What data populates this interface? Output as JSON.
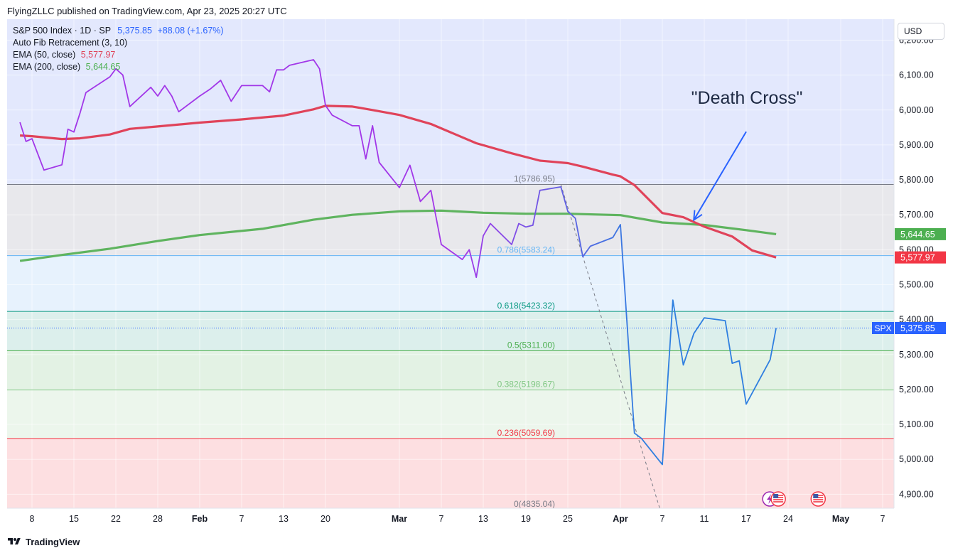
{
  "header": {
    "publisher": "FlyingZLLC published on TradingView.com, Apr 23, 2025 20:27 UTC"
  },
  "legend": {
    "symbol": "S&P 500 Index · 1D · SP",
    "last": "5,375.85",
    "change": "+88.08 (+1.67%)",
    "fib": "Auto Fib Retracement (3, 10)",
    "ema50_label": "EMA (50, close)",
    "ema50_value": "5,577.97",
    "ema200_label": "EMA (200, close)",
    "ema200_value": "5,644.65"
  },
  "currency": "USD",
  "footer": {
    "brand": "TradingView"
  },
  "colors": {
    "price_line_pre_march": "#a237e8",
    "price_line_post": "#2f7fe0",
    "ema50": "#e0435a",
    "ema200": "#5fb45f",
    "annotation": "#2962ff",
    "last_price_tag": "#2962ff"
  },
  "chart_data": {
    "type": "line",
    "title": "S&P 500 Index · 1D · SP",
    "ylim": [
      4860,
      6260
    ],
    "y_ticks": [
      4900,
      5000,
      5100,
      5200,
      5300,
      5400,
      5500,
      5600,
      5700,
      5800,
      5900,
      6000,
      6100,
      6200
    ],
    "y_tick_labels": [
      "4,900.00",
      "5,000.00",
      "5,100.00",
      "5,200.00",
      "5,300.00",
      "5,400.00",
      "5,500.00",
      "5,600.00",
      "5,700.00",
      "5,800.00",
      "5,900.00",
      "6,000.00",
      "6,100.00",
      "6,200.00"
    ],
    "x_ticks": [
      {
        "date": "2025-01-08",
        "label": "8",
        "bold": false
      },
      {
        "date": "2025-01-15",
        "label": "15",
        "bold": false
      },
      {
        "date": "2025-01-22",
        "label": "22",
        "bold": false
      },
      {
        "date": "2025-01-28",
        "label": "28",
        "bold": false
      },
      {
        "date": "2025-02-03",
        "label": "Feb",
        "bold": true
      },
      {
        "date": "2025-02-07",
        "label": "7",
        "bold": false
      },
      {
        "date": "2025-02-13",
        "label": "13",
        "bold": false
      },
      {
        "date": "2025-02-20",
        "label": "20",
        "bold": false
      },
      {
        "date": "2025-03-03",
        "label": "Mar",
        "bold": true
      },
      {
        "date": "2025-03-07",
        "label": "7",
        "bold": false
      },
      {
        "date": "2025-03-13",
        "label": "13",
        "bold": false
      },
      {
        "date": "2025-03-19",
        "label": "19",
        "bold": false
      },
      {
        "date": "2025-03-25",
        "label": "25",
        "bold": false
      },
      {
        "date": "2025-04-01",
        "label": "Apr",
        "bold": true
      },
      {
        "date": "2025-04-07",
        "label": "7",
        "bold": false
      },
      {
        "date": "2025-04-11",
        "label": "11",
        "bold": false
      },
      {
        "date": "2025-04-17",
        "label": "17",
        "bold": false
      },
      {
        "date": "2025-04-24",
        "label": "24",
        "bold": false
      },
      {
        "date": "2025-05-01",
        "label": "May",
        "bold": true
      },
      {
        "date": "2025-05-07",
        "label": "7",
        "bold": false
      }
    ],
    "series": [
      {
        "name": "S&P 500 Index",
        "points": [
          [
            "2025-01-06",
            5965
          ],
          [
            "2025-01-07",
            5910
          ],
          [
            "2025-01-08",
            5918
          ],
          [
            "2025-01-10",
            5828
          ],
          [
            "2025-01-13",
            5843
          ],
          [
            "2025-01-14",
            5945
          ],
          [
            "2025-01-15",
            5937
          ],
          [
            "2025-01-16",
            5990
          ],
          [
            "2025-01-17",
            6050
          ],
          [
            "2025-01-21",
            6095
          ],
          [
            "2025-01-22",
            6118
          ],
          [
            "2025-01-23",
            6100
          ],
          [
            "2025-01-24",
            6010
          ],
          [
            "2025-01-27",
            6065
          ],
          [
            "2025-01-28",
            6040
          ],
          [
            "2025-01-29",
            6070
          ],
          [
            "2025-01-30",
            6040
          ],
          [
            "2025-01-31",
            5995
          ],
          [
            "2025-02-03",
            6040
          ],
          [
            "2025-02-04",
            6060
          ],
          [
            "2025-02-05",
            6085
          ],
          [
            "2025-02-06",
            6025
          ],
          [
            "2025-02-07",
            6070
          ],
          [
            "2025-02-10",
            6070
          ],
          [
            "2025-02-11",
            6052
          ],
          [
            "2025-02-12",
            6115
          ],
          [
            "2025-02-13",
            6115
          ],
          [
            "2025-02-14",
            6128
          ],
          [
            "2025-02-18",
            6144
          ],
          [
            "2025-02-19",
            6118
          ],
          [
            "2025-02-20",
            6013
          ],
          [
            "2025-02-21",
            5985
          ],
          [
            "2025-02-24",
            5955
          ],
          [
            "2025-02-25",
            5955
          ],
          [
            "2025-02-26",
            5860
          ],
          [
            "2025-02-27",
            5955
          ],
          [
            "2025-02-28",
            5850
          ],
          [
            "2025-03-03",
            5778
          ],
          [
            "2025-03-04",
            5842
          ],
          [
            "2025-03-05",
            5738
          ],
          [
            "2025-03-06",
            5770
          ],
          [
            "2025-03-07",
            5615
          ],
          [
            "2025-03-10",
            5572
          ],
          [
            "2025-03-11",
            5600
          ],
          [
            "2025-03-12",
            5521
          ],
          [
            "2025-03-13",
            5640
          ],
          [
            "2025-03-14",
            5675
          ],
          [
            "2025-03-17",
            5615
          ],
          [
            "2025-03-18",
            5675
          ],
          [
            "2025-03-19",
            5665
          ],
          [
            "2025-03-20",
            5670
          ],
          [
            "2025-03-21",
            5770
          ],
          [
            "2025-03-24",
            5780
          ],
          [
            "2025-03-25",
            5710
          ],
          [
            "2025-03-26",
            5690
          ],
          [
            "2025-03-27",
            5580
          ],
          [
            "2025-03-28",
            5610
          ],
          [
            "2025-03-31",
            5635
          ],
          [
            "2025-04-01",
            5672
          ],
          [
            "2025-04-02",
            5375
          ],
          [
            "2025-04-03",
            5075
          ],
          [
            "2025-04-04",
            5060
          ],
          [
            "2025-04-07",
            4985
          ],
          [
            "2025-04-08",
            5456
          ],
          [
            "2025-04-09",
            5270
          ],
          [
            "2025-04-10",
            5360
          ],
          [
            "2025-04-11",
            5405
          ],
          [
            "2025-04-14",
            5397
          ],
          [
            "2025-04-15",
            5275
          ],
          [
            "2025-04-16",
            5282
          ],
          [
            "2025-04-17",
            5158
          ],
          [
            "2025-04-21",
            5285
          ],
          [
            "2025-04-22",
            5375.85
          ]
        ]
      },
      {
        "name": "EMA (50, close)",
        "points": [
          [
            "2025-01-06",
            5927
          ],
          [
            "2025-01-08",
            5925
          ],
          [
            "2025-01-13",
            5917
          ],
          [
            "2025-01-16",
            5919
          ],
          [
            "2025-01-21",
            5930
          ],
          [
            "2025-01-24",
            5946
          ],
          [
            "2025-01-28",
            5953
          ],
          [
            "2025-02-03",
            5964
          ],
          [
            "2025-02-07",
            5973
          ],
          [
            "2025-02-13",
            5984
          ],
          [
            "2025-02-18",
            6002
          ],
          [
            "2025-02-20",
            6012
          ],
          [
            "2025-02-24",
            6010
          ],
          [
            "2025-02-27",
            6000
          ],
          [
            "2025-03-03",
            5986
          ],
          [
            "2025-03-06",
            5960
          ],
          [
            "2025-03-12",
            5905
          ],
          [
            "2025-03-17",
            5876
          ],
          [
            "2025-03-21",
            5855
          ],
          [
            "2025-03-25",
            5848
          ],
          [
            "2025-03-27",
            5838
          ],
          [
            "2025-03-31",
            5815
          ],
          [
            "2025-04-01",
            5810
          ],
          [
            "2025-04-03",
            5785
          ],
          [
            "2025-04-07",
            5705
          ],
          [
            "2025-04-09",
            5693
          ],
          [
            "2025-04-11",
            5666
          ],
          [
            "2025-04-15",
            5638
          ],
          [
            "2025-04-18",
            5598
          ],
          [
            "2025-04-22",
            5577.97
          ]
        ]
      },
      {
        "name": "EMA (200, close)",
        "points": [
          [
            "2025-01-06",
            5568
          ],
          [
            "2025-01-13",
            5585
          ],
          [
            "2025-01-21",
            5603
          ],
          [
            "2025-01-28",
            5625
          ],
          [
            "2025-02-03",
            5642
          ],
          [
            "2025-02-10",
            5660
          ],
          [
            "2025-02-18",
            5686
          ],
          [
            "2025-02-24",
            5700
          ],
          [
            "2025-03-03",
            5710
          ],
          [
            "2025-03-07",
            5712
          ],
          [
            "2025-03-13",
            5706
          ],
          [
            "2025-03-19",
            5703
          ],
          [
            "2025-03-25",
            5703
          ],
          [
            "2025-04-01",
            5699
          ],
          [
            "2025-04-07",
            5678
          ],
          [
            "2025-04-11",
            5671
          ],
          [
            "2025-04-17",
            5656
          ],
          [
            "2025-04-22",
            5644.65
          ]
        ]
      }
    ],
    "fib_levels": [
      {
        "level": "1",
        "price": 5786.95,
        "label": "1(5786.95)",
        "color": "#787b86",
        "fill": "#e8e8ec",
        "label_color": "#787b86"
      },
      {
        "level": "0.786",
        "price": 5583.24,
        "label": "0.786(5583.24)",
        "color": "#64b5f6",
        "fill": "#e7f2fd",
        "label_color": "#64b5f6"
      },
      {
        "level": "0.618",
        "price": 5423.32,
        "label": "0.618(5423.32)",
        "color": "#089981",
        "fill": "#dcefec",
        "label_color": "#089981"
      },
      {
        "level": "0.5",
        "price": 5311.0,
        "label": "0.5(5311.00)",
        "color": "#4caf50",
        "fill": "#e3f2e4",
        "label_color": "#4caf50"
      },
      {
        "level": "0.382",
        "price": 5198.67,
        "label": "0.382(5198.67)",
        "color": "#81c784",
        "fill": "#ecf6ec",
        "label_color": "#81c784"
      },
      {
        "level": "0.236",
        "price": 5059.69,
        "label": "0.236(5059.69)",
        "color": "#f23645",
        "fill": "#fddfe1",
        "label_color": "#f23645"
      },
      {
        "level": "0",
        "price": 4835.04,
        "label": "0(4835.04)",
        "color": "#787b86",
        "fill": "#fddfe1",
        "label_color": "#787b86"
      }
    ],
    "fib_top_fill": "#e3e8fd",
    "trend_line": {
      "from": [
        "2025-03-24",
        5786.95
      ],
      "to": [
        "2025-04-07",
        4835.04
      ]
    },
    "price_tags": [
      {
        "text": "5,644.65",
        "value": 5644.65,
        "bg": "#4caf50"
      },
      {
        "text": "5,577.97",
        "value": 5577.97,
        "bg": "#f23645"
      },
      {
        "text": "5,375.85",
        "value": 5375.85,
        "bg": "#2962ff",
        "prefix": "SPX"
      }
    ],
    "annotation": {
      "text": "\"Death Cross\"",
      "arrow_tail": [
        "2025-04-17",
        5938
      ],
      "arrow_head": [
        "2025-04-10",
        5685
      ]
    },
    "event_markers": [
      {
        "date": "2025-04-22",
        "icons": [
          "flash-icon",
          "us-flag-icon"
        ]
      },
      {
        "date": "2025-04-28",
        "icons": [
          "us-flag-icon"
        ]
      }
    ]
  }
}
